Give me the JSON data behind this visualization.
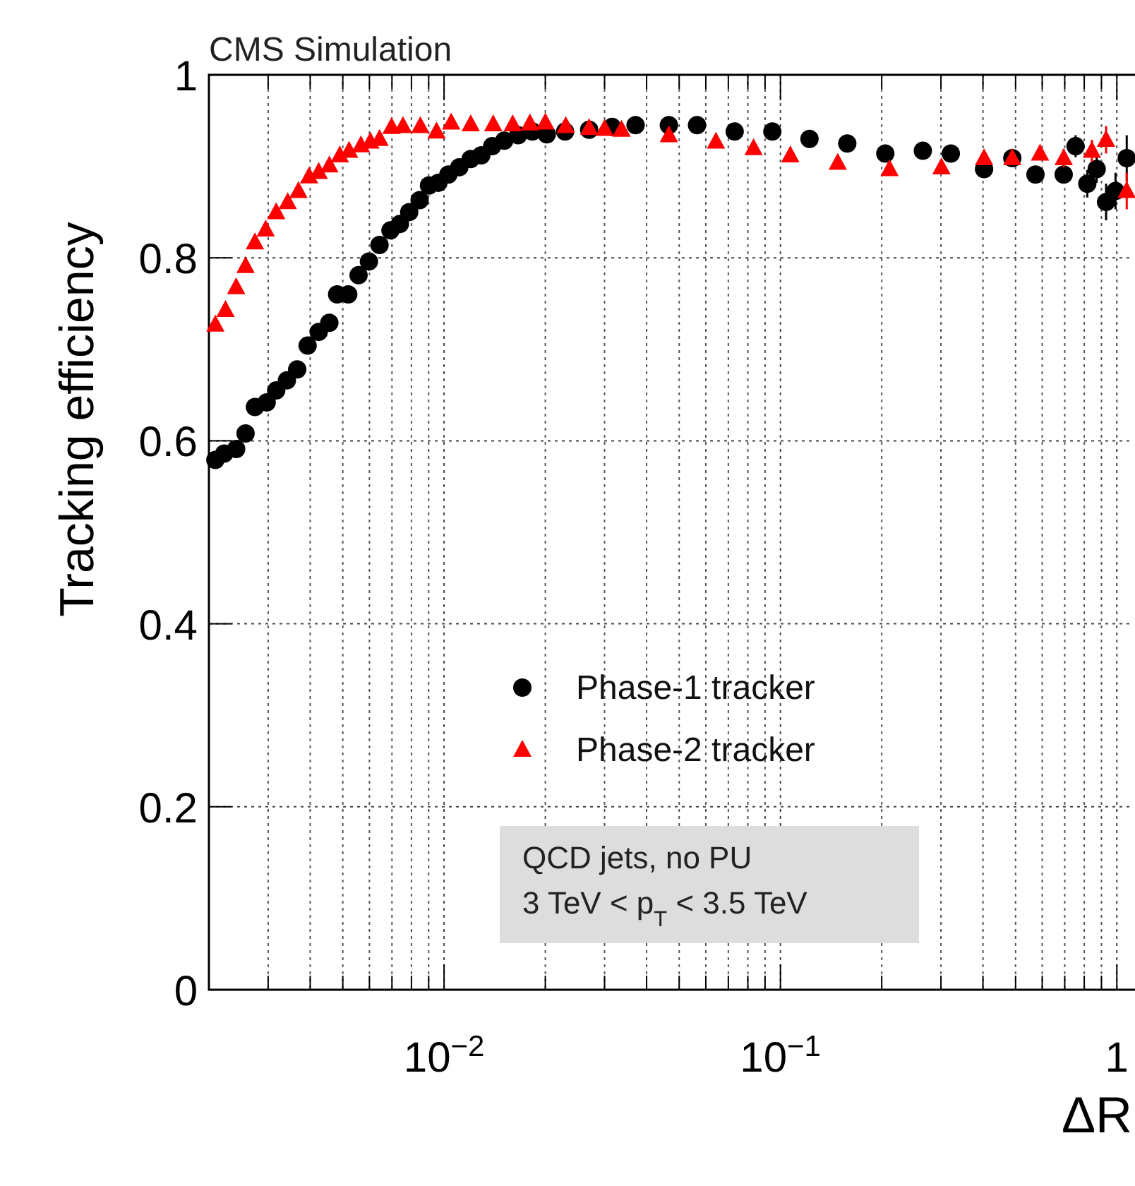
{
  "chart_data": {
    "type": "scatter",
    "title": "CMS Simulation",
    "xlabel": "ΔR",
    "ylabel": "Tracking efficiency",
    "log": "x",
    "grid": true,
    "legend": "bottom",
    "xlim": [
      0.002,
      1.1
    ],
    "xticks": [
      {
        "value": 0.01,
        "label": "10$^{−2}$"
      },
      {
        "value": 0.1,
        "label": "10$^{−1}$"
      },
      1
    ],
    "ylim": [
      0,
      1
    ],
    "yticks": [
      0,
      0.2,
      0.4,
      0.6,
      0.8,
      1
    ],
    "annotations": [
      "QCD jets, no PU",
      "3 TeV < p$_{T}$ < 3.5 TeV"
    ],
    "series": [
      {
        "name": "Phase-1 tracker",
        "color": "#000000",
        "marker": "circle",
        "x": [
          0.00209,
          0.00222,
          0.00241,
          0.00257,
          0.00274,
          0.00297,
          0.00317,
          0.00341,
          0.00366,
          0.00393,
          0.00424,
          0.00456,
          0.00481,
          0.00519,
          0.00557,
          0.00598,
          0.00643,
          0.00693,
          0.00739,
          0.00788,
          0.00846,
          0.00902,
          0.00962,
          0.0103,
          0.0111,
          0.012,
          0.0129,
          0.0139,
          0.0151,
          0.0166,
          0.0183,
          0.0202,
          0.0229,
          0.027,
          0.0316,
          0.0371,
          0.0466,
          0.0565,
          0.0731,
          0.0946,
          0.122,
          0.158,
          0.205,
          0.265,
          0.321,
          0.403,
          0.489,
          0.573,
          0.695,
          0.754,
          0.817,
          0.871,
          0.929,
          0.991,
          1.07
        ],
        "values": [
          0.579,
          0.586,
          0.591,
          0.608,
          0.637,
          0.642,
          0.655,
          0.666,
          0.678,
          0.704,
          0.719,
          0.729,
          0.76,
          0.76,
          0.781,
          0.796,
          0.814,
          0.83,
          0.837,
          0.85,
          0.863,
          0.879,
          0.882,
          0.891,
          0.899,
          0.908,
          0.912,
          0.922,
          0.928,
          0.934,
          0.938,
          0.935,
          0.938,
          0.94,
          0.943,
          0.945,
          0.945,
          0.945,
          0.938,
          0.938,
          0.93,
          0.925,
          0.914,
          0.917,
          0.914,
          0.897,
          0.909,
          0.891,
          0.891,
          0.922,
          0.881,
          0.897,
          0.861,
          0.873,
          0.909
        ],
        "errors": [
          null,
          null,
          null,
          null,
          null,
          null,
          null,
          null,
          null,
          null,
          null,
          null,
          null,
          null,
          null,
          null,
          null,
          null,
          null,
          null,
          null,
          null,
          null,
          null,
          null,
          null,
          null,
          null,
          null,
          null,
          null,
          null,
          null,
          null,
          null,
          null,
          null,
          null,
          null,
          null,
          null,
          null,
          null,
          null,
          null,
          null,
          null,
          null,
          null,
          0.012,
          0.015,
          0.015,
          0.02,
          0.02,
          0.025
        ]
      },
      {
        "name": "Phase-2 tracker",
        "color": "#ff0000",
        "marker": "triangle",
        "x": [
          0.00209,
          0.00224,
          0.00241,
          0.00257,
          0.00274,
          0.00295,
          0.00317,
          0.00343,
          0.00369,
          0.00397,
          0.00424,
          0.00456,
          0.0049,
          0.00522,
          0.00566,
          0.00604,
          0.00643,
          0.00698,
          0.00755,
          0.0085,
          0.0095,
          0.0105,
          0.012,
          0.014,
          0.016,
          0.018,
          0.02,
          0.023,
          0.027,
          0.03,
          0.0337,
          0.0466,
          0.0643,
          0.0832,
          0.107,
          0.148,
          0.211,
          0.301,
          0.403,
          0.489,
          0.591,
          0.695,
          0.843,
          0.929,
          1.07
        ],
        "values": [
          0.727,
          0.743,
          0.768,
          0.791,
          0.817,
          0.831,
          0.85,
          0.861,
          0.873,
          0.889,
          0.894,
          0.901,
          0.912,
          0.917,
          0.923,
          0.927,
          0.93,
          0.943,
          0.944,
          0.944,
          0.938,
          0.948,
          0.946,
          0.946,
          0.946,
          0.947,
          0.948,
          0.944,
          0.942,
          0.941,
          0.94,
          0.934,
          0.927,
          0.92,
          0.912,
          0.904,
          0.897,
          0.899,
          0.909,
          0.909,
          0.914,
          0.909,
          0.917,
          0.929,
          0.873
        ],
        "errors": [
          null,
          null,
          null,
          null,
          null,
          null,
          null,
          null,
          null,
          null,
          null,
          null,
          null,
          null,
          null,
          null,
          null,
          null,
          null,
          null,
          null,
          null,
          null,
          null,
          null,
          null,
          null,
          null,
          null,
          null,
          null,
          null,
          null,
          null,
          null,
          null,
          null,
          null,
          null,
          null,
          null,
          0.01,
          0.012,
          0.015,
          0.02
        ]
      }
    ]
  }
}
